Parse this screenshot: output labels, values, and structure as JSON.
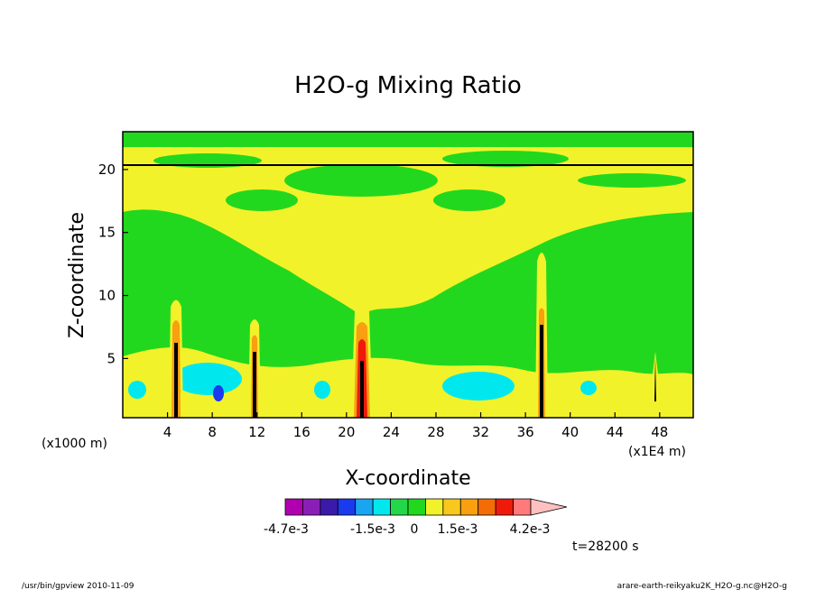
{
  "chart_data": {
    "type": "heatmap",
    "title": "H2O-g Mixing Ratio",
    "xlabel": "X-coordinate",
    "ylabel": "Z-coordinate",
    "x_unit_label": "(x1000 m)",
    "x_scale_label": "(x1E4 m)",
    "xlim": [
      0,
      51
    ],
    "ylim": [
      0.3,
      23
    ],
    "xticks": [
      4,
      8,
      12,
      16,
      20,
      24,
      28,
      32,
      36,
      40,
      44,
      48
    ],
    "yticks": [
      5,
      10,
      15,
      20
    ],
    "colorbar": {
      "tick_labels": [
        "-4.7e-3",
        "-1.5e-3",
        "0",
        "1.5e-3",
        "4.2e-3"
      ],
      "colors": [
        "#b000b0",
        "#8a1fb6",
        "#3a1aa8",
        "#1a3aee",
        "#1aa5f0",
        "#00e8ee",
        "#22d84a",
        "#22d81e",
        "#f2f22a",
        "#f8c81e",
        "#f8a010",
        "#f46c06",
        "#f01a0a",
        "#ff7a7a",
        "#ffc0c0"
      ]
    },
    "background_field": "#22d81e",
    "features": [
      {
        "kind": "plume",
        "x": 4.8,
        "top": 10.5
      },
      {
        "kind": "plume",
        "x": 11.8,
        "top": 7.5
      },
      {
        "kind": "plume",
        "x": 21.5,
        "top": 9.5
      },
      {
        "kind": "plume",
        "x": 37.7,
        "top": 14.0
      },
      {
        "kind": "plume",
        "x": 48.0,
        "top": 5.5
      },
      {
        "kind": "negative-patch",
        "x": 8.5,
        "z": 2.3
      },
      {
        "kind": "negative-patch",
        "x": 33.5,
        "z": 2.5
      }
    ],
    "time_label": "t=28200 s"
  },
  "footer": {
    "left": "/usr/bin/gpview  2010-11-09",
    "right": "arare-earth-reikyaku2K_H2O-g.nc@H2O-g"
  }
}
